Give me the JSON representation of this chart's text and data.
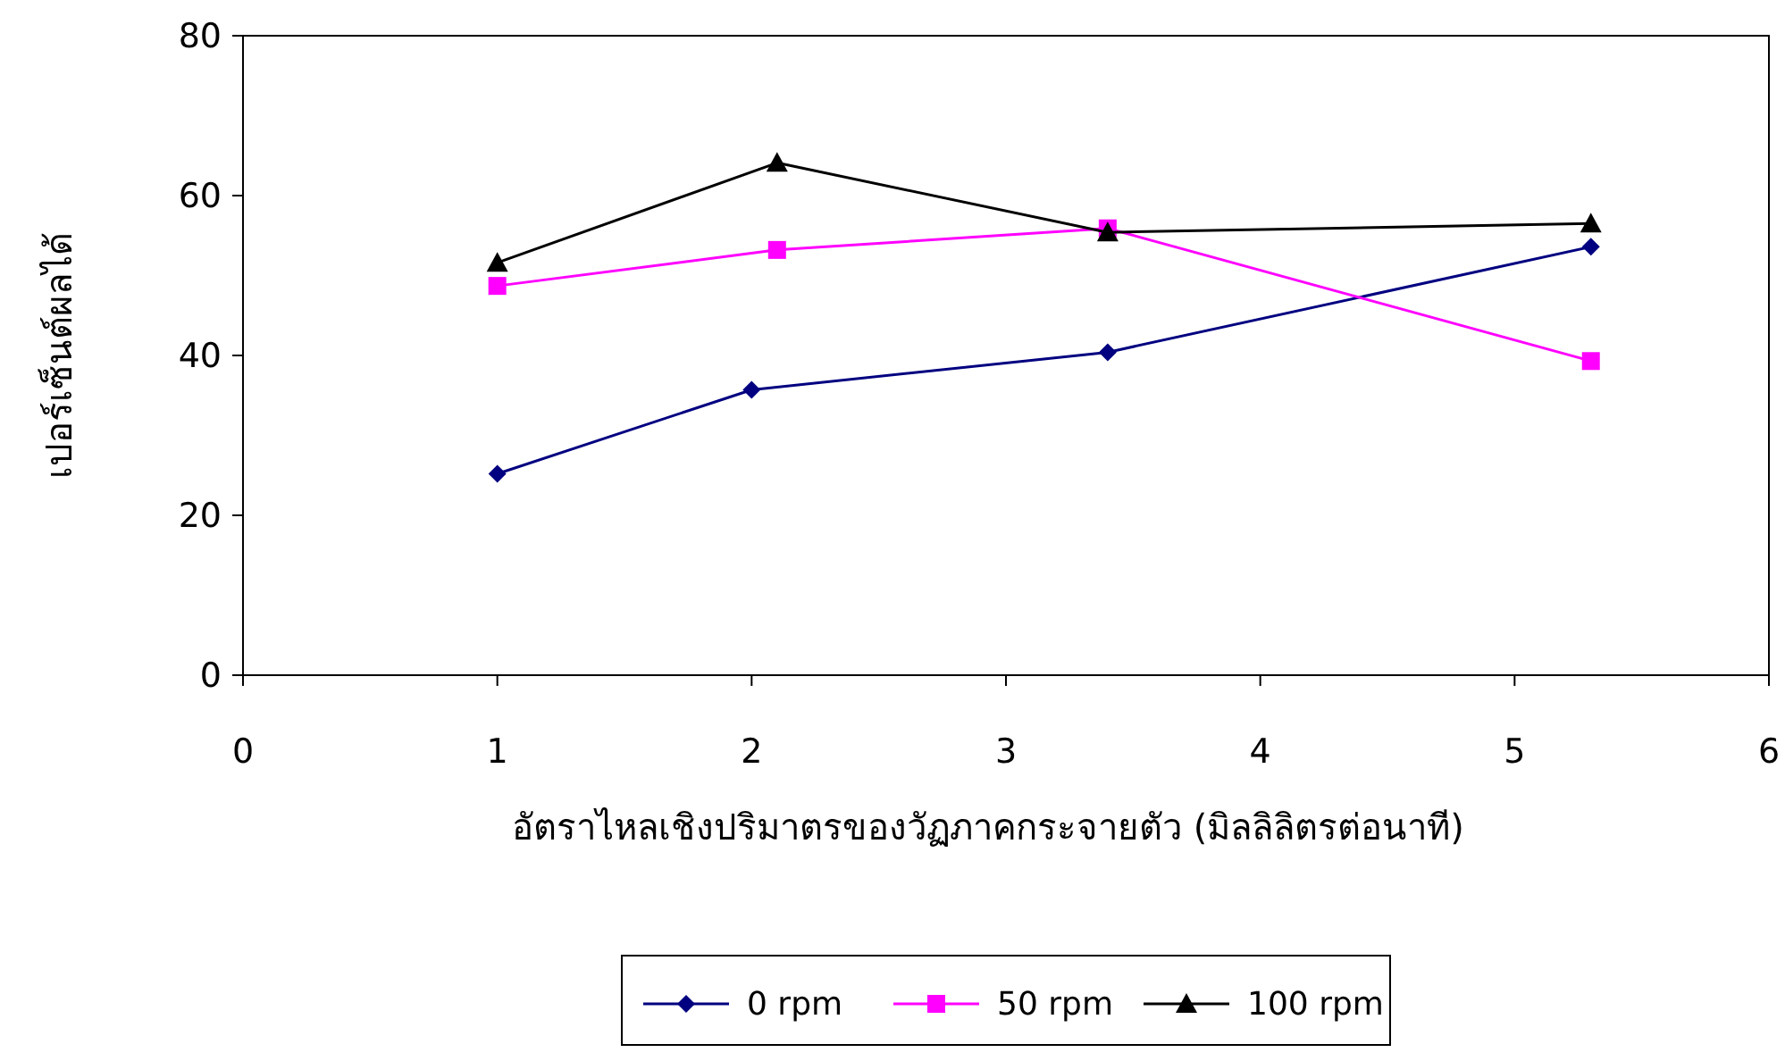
{
  "chart_data": {
    "type": "line",
    "xlabel": "อัตราไหลเชิงปริมาตรของวัฏภาคกระจายตัว (มิลลิลิตรต่อนาที)",
    "ylabel": "เปอร์เซ็นต์ผลได้",
    "xlim": [
      0,
      6
    ],
    "xticks": [
      0,
      1,
      2,
      3,
      4,
      5,
      6
    ],
    "ylim": [
      0,
      80
    ],
    "yticks": [
      0,
      20,
      40,
      60,
      80
    ],
    "grid": false,
    "legend": "bottom",
    "series": [
      {
        "name": "0 rpm",
        "color": "#000080",
        "marker": "diamond",
        "x": [
          1,
          2.0,
          3.4,
          5.3
        ],
        "values": [
          25.2,
          35.7,
          40.4,
          53.6
        ]
      },
      {
        "name": "50 rpm",
        "color": "#ff00ff",
        "marker": "square",
        "x": [
          1,
          2.1,
          3.4,
          5.3
        ],
        "values": [
          48.7,
          53.2,
          55.9,
          39.3
        ]
      },
      {
        "name": "100 rpm",
        "color": "#000000",
        "marker": "triangle",
        "x": [
          1,
          2.1,
          3.4,
          5.3
        ],
        "values": [
          51.6,
          64.1,
          55.4,
          56.5
        ]
      }
    ]
  }
}
